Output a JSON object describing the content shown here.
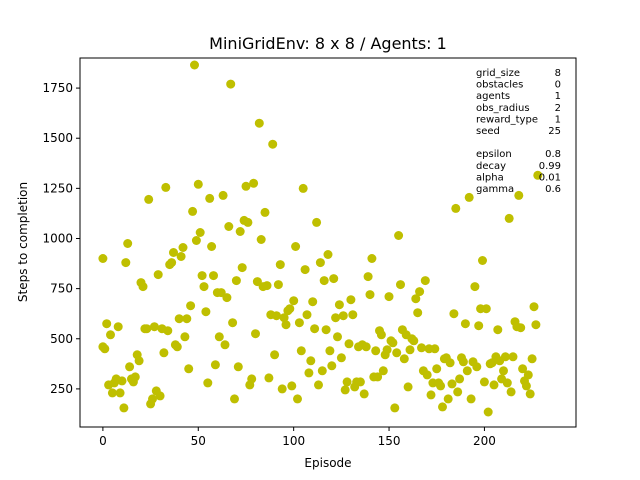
{
  "chart_data": {
    "type": "scatter",
    "title": "MiniGridEnv: 8 x 8 / Agents: 1",
    "xlabel": "Episode",
    "ylabel": "Steps to completion",
    "xlim": [
      -12,
      248
    ],
    "ylim": [
      60,
      1900
    ],
    "xticks": [
      0,
      50,
      100,
      150,
      200
    ],
    "yticks": [
      250,
      500,
      750,
      1000,
      1250,
      1500,
      1750
    ],
    "grid": false,
    "marker_color": "#bfbf00",
    "points": [
      [
        0,
        900
      ],
      [
        0,
        460
      ],
      [
        1,
        450
      ],
      [
        2,
        575
      ],
      [
        3,
        270
      ],
      [
        4,
        520
      ],
      [
        5,
        230
      ],
      [
        6,
        280
      ],
      [
        7,
        300
      ],
      [
        8,
        560
      ],
      [
        9,
        230
      ],
      [
        10,
        290
      ],
      [
        11,
        155
      ],
      [
        12,
        880
      ],
      [
        13,
        975
      ],
      [
        14,
        360
      ],
      [
        15,
        300
      ],
      [
        16,
        285
      ],
      [
        17,
        310
      ],
      [
        18,
        420
      ],
      [
        19,
        390
      ],
      [
        20,
        780
      ],
      [
        21,
        760
      ],
      [
        22,
        550
      ],
      [
        23,
        550
      ],
      [
        24,
        1195
      ],
      [
        25,
        175
      ],
      [
        26,
        200
      ],
      [
        27,
        560
      ],
      [
        28,
        240
      ],
      [
        29,
        820
      ],
      [
        30,
        215
      ],
      [
        31,
        550
      ],
      [
        32,
        430
      ],
      [
        33,
        1255
      ],
      [
        34,
        540
      ],
      [
        35,
        870
      ],
      [
        36,
        880
      ],
      [
        37,
        930
      ],
      [
        38,
        470
      ],
      [
        39,
        460
      ],
      [
        40,
        600
      ],
      [
        41,
        910
      ],
      [
        42,
        955
      ],
      [
        43,
        510
      ],
      [
        44,
        600
      ],
      [
        45,
        350
      ],
      [
        46,
        665
      ],
      [
        47,
        1135
      ],
      [
        48,
        1865
      ],
      [
        49,
        990
      ],
      [
        50,
        1270
      ],
      [
        51,
        1030
      ],
      [
        52,
        815
      ],
      [
        53,
        760
      ],
      [
        54,
        635
      ],
      [
        55,
        280
      ],
      [
        56,
        1200
      ],
      [
        57,
        960
      ],
      [
        58,
        815
      ],
      [
        59,
        370
      ],
      [
        60,
        730
      ],
      [
        61,
        510
      ],
      [
        62,
        730
      ],
      [
        63,
        1215
      ],
      [
        64,
        470
      ],
      [
        65,
        705
      ],
      [
        66,
        1060
      ],
      [
        67,
        1770
      ],
      [
        68,
        580
      ],
      [
        69,
        200
      ],
      [
        70,
        790
      ],
      [
        71,
        360
      ],
      [
        72,
        1035
      ],
      [
        73,
        855
      ],
      [
        74,
        1090
      ],
      [
        75,
        1260
      ],
      [
        76,
        1080
      ],
      [
        77,
        270
      ],
      [
        78,
        300
      ],
      [
        79,
        1275
      ],
      [
        80,
        525
      ],
      [
        81,
        785
      ],
      [
        82,
        1575
      ],
      [
        83,
        995
      ],
      [
        84,
        760
      ],
      [
        85,
        1130
      ],
      [
        86,
        765
      ],
      [
        87,
        305
      ],
      [
        88,
        620
      ],
      [
        89,
        1470
      ],
      [
        90,
        420
      ],
      [
        91,
        615
      ],
      [
        92,
        770
      ],
      [
        93,
        870
      ],
      [
        94,
        250
      ],
      [
        95,
        605
      ],
      [
        96,
        570
      ],
      [
        97,
        640
      ],
      [
        98,
        650
      ],
      [
        99,
        265
      ],
      [
        100,
        690
      ],
      [
        101,
        960
      ],
      [
        102,
        200
      ],
      [
        103,
        580
      ],
      [
        104,
        440
      ],
      [
        105,
        1250
      ],
      [
        106,
        845
      ],
      [
        107,
        620
      ],
      [
        108,
        330
      ],
      [
        109,
        390
      ],
      [
        110,
        685
      ],
      [
        111,
        550
      ],
      [
        112,
        1080
      ],
      [
        113,
        270
      ],
      [
        114,
        880
      ],
      [
        115,
        340
      ],
      [
        116,
        790
      ],
      [
        117,
        545
      ],
      [
        118,
        920
      ],
      [
        119,
        440
      ],
      [
        120,
        365
      ],
      [
        121,
        800
      ],
      [
        122,
        605
      ],
      [
        123,
        510
      ],
      [
        124,
        670
      ],
      [
        125,
        405
      ],
      [
        126,
        615
      ],
      [
        127,
        245
      ],
      [
        128,
        285
      ],
      [
        129,
        475
      ],
      [
        130,
        695
      ],
      [
        131,
        620
      ],
      [
        132,
        260
      ],
      [
        133,
        285
      ],
      [
        134,
        460
      ],
      [
        135,
        285
      ],
      [
        136,
        470
      ],
      [
        137,
        225
      ],
      [
        138,
        460
      ],
      [
        139,
        810
      ],
      [
        140,
        720
      ],
      [
        141,
        900
      ],
      [
        142,
        310
      ],
      [
        143,
        440
      ],
      [
        144,
        310
      ],
      [
        145,
        540
      ],
      [
        146,
        520
      ],
      [
        147,
        340
      ],
      [
        148,
        420
      ],
      [
        149,
        445
      ],
      [
        150,
        710
      ],
      [
        151,
        490
      ],
      [
        152,
        480
      ],
      [
        153,
        155
      ],
      [
        154,
        430
      ],
      [
        155,
        1015
      ],
      [
        156,
        770
      ],
      [
        157,
        545
      ],
      [
        158,
        400
      ],
      [
        159,
        520
      ],
      [
        160,
        260
      ],
      [
        161,
        445
      ],
      [
        162,
        500
      ],
      [
        163,
        490
      ],
      [
        164,
        700
      ],
      [
        165,
        630
      ],
      [
        166,
        735
      ],
      [
        167,
        455
      ],
      [
        168,
        340
      ],
      [
        169,
        790
      ],
      [
        170,
        320
      ],
      [
        171,
        450
      ],
      [
        172,
        220
      ],
      [
        173,
        280
      ],
      [
        174,
        450
      ],
      [
        175,
        350
      ],
      [
        176,
        280
      ],
      [
        177,
        265
      ],
      [
        178,
        160
      ],
      [
        179,
        400
      ],
      [
        180,
        405
      ],
      [
        181,
        200
      ],
      [
        182,
        380
      ],
      [
        183,
        275
      ],
      [
        184,
        625
      ],
      [
        185,
        1150
      ],
      [
        186,
        235
      ],
      [
        187,
        300
      ],
      [
        188,
        405
      ],
      [
        189,
        385
      ],
      [
        190,
        575
      ],
      [
        191,
        340
      ],
      [
        192,
        1205
      ],
      [
        193,
        200
      ],
      [
        194,
        385
      ],
      [
        195,
        760
      ],
      [
        196,
        360
      ],
      [
        197,
        565
      ],
      [
        198,
        650
      ],
      [
        199,
        890
      ],
      [
        200,
        285
      ],
      [
        201,
        650
      ],
      [
        202,
        135
      ],
      [
        203,
        375
      ],
      [
        204,
        380
      ],
      [
        205,
        270
      ],
      [
        206,
        410
      ],
      [
        207,
        545
      ],
      [
        208,
        390
      ],
      [
        209,
        300
      ],
      [
        210,
        340
      ],
      [
        211,
        410
      ],
      [
        212,
        280
      ],
      [
        213,
        1100
      ],
      [
        214,
        235
      ],
      [
        215,
        410
      ],
      [
        216,
        585
      ],
      [
        217,
        560
      ],
      [
        218,
        1215
      ],
      [
        219,
        555
      ],
      [
        220,
        350
      ],
      [
        221,
        290
      ],
      [
        222,
        265
      ],
      [
        223,
        320
      ],
      [
        224,
        225
      ],
      [
        225,
        400
      ],
      [
        226,
        660
      ],
      [
        227,
        570
      ],
      [
        228,
        1315
      ]
    ]
  },
  "info_box": {
    "params": [
      {
        "key": "grid_size",
        "value": "8"
      },
      {
        "key": "obstacles",
        "value": "0"
      },
      {
        "key": "agents",
        "value": "1"
      },
      {
        "key": "obs_radius",
        "value": "2"
      },
      {
        "key": "reward_type",
        "value": "1"
      },
      {
        "key": "seed",
        "value": "25"
      }
    ],
    "hyper": [
      {
        "key": "epsilon",
        "value": "0.8"
      },
      {
        "key": "decay",
        "value": "0.99"
      },
      {
        "key": "alpha",
        "value": "0.01"
      },
      {
        "key": "gamma",
        "value": "0.6"
      }
    ]
  }
}
